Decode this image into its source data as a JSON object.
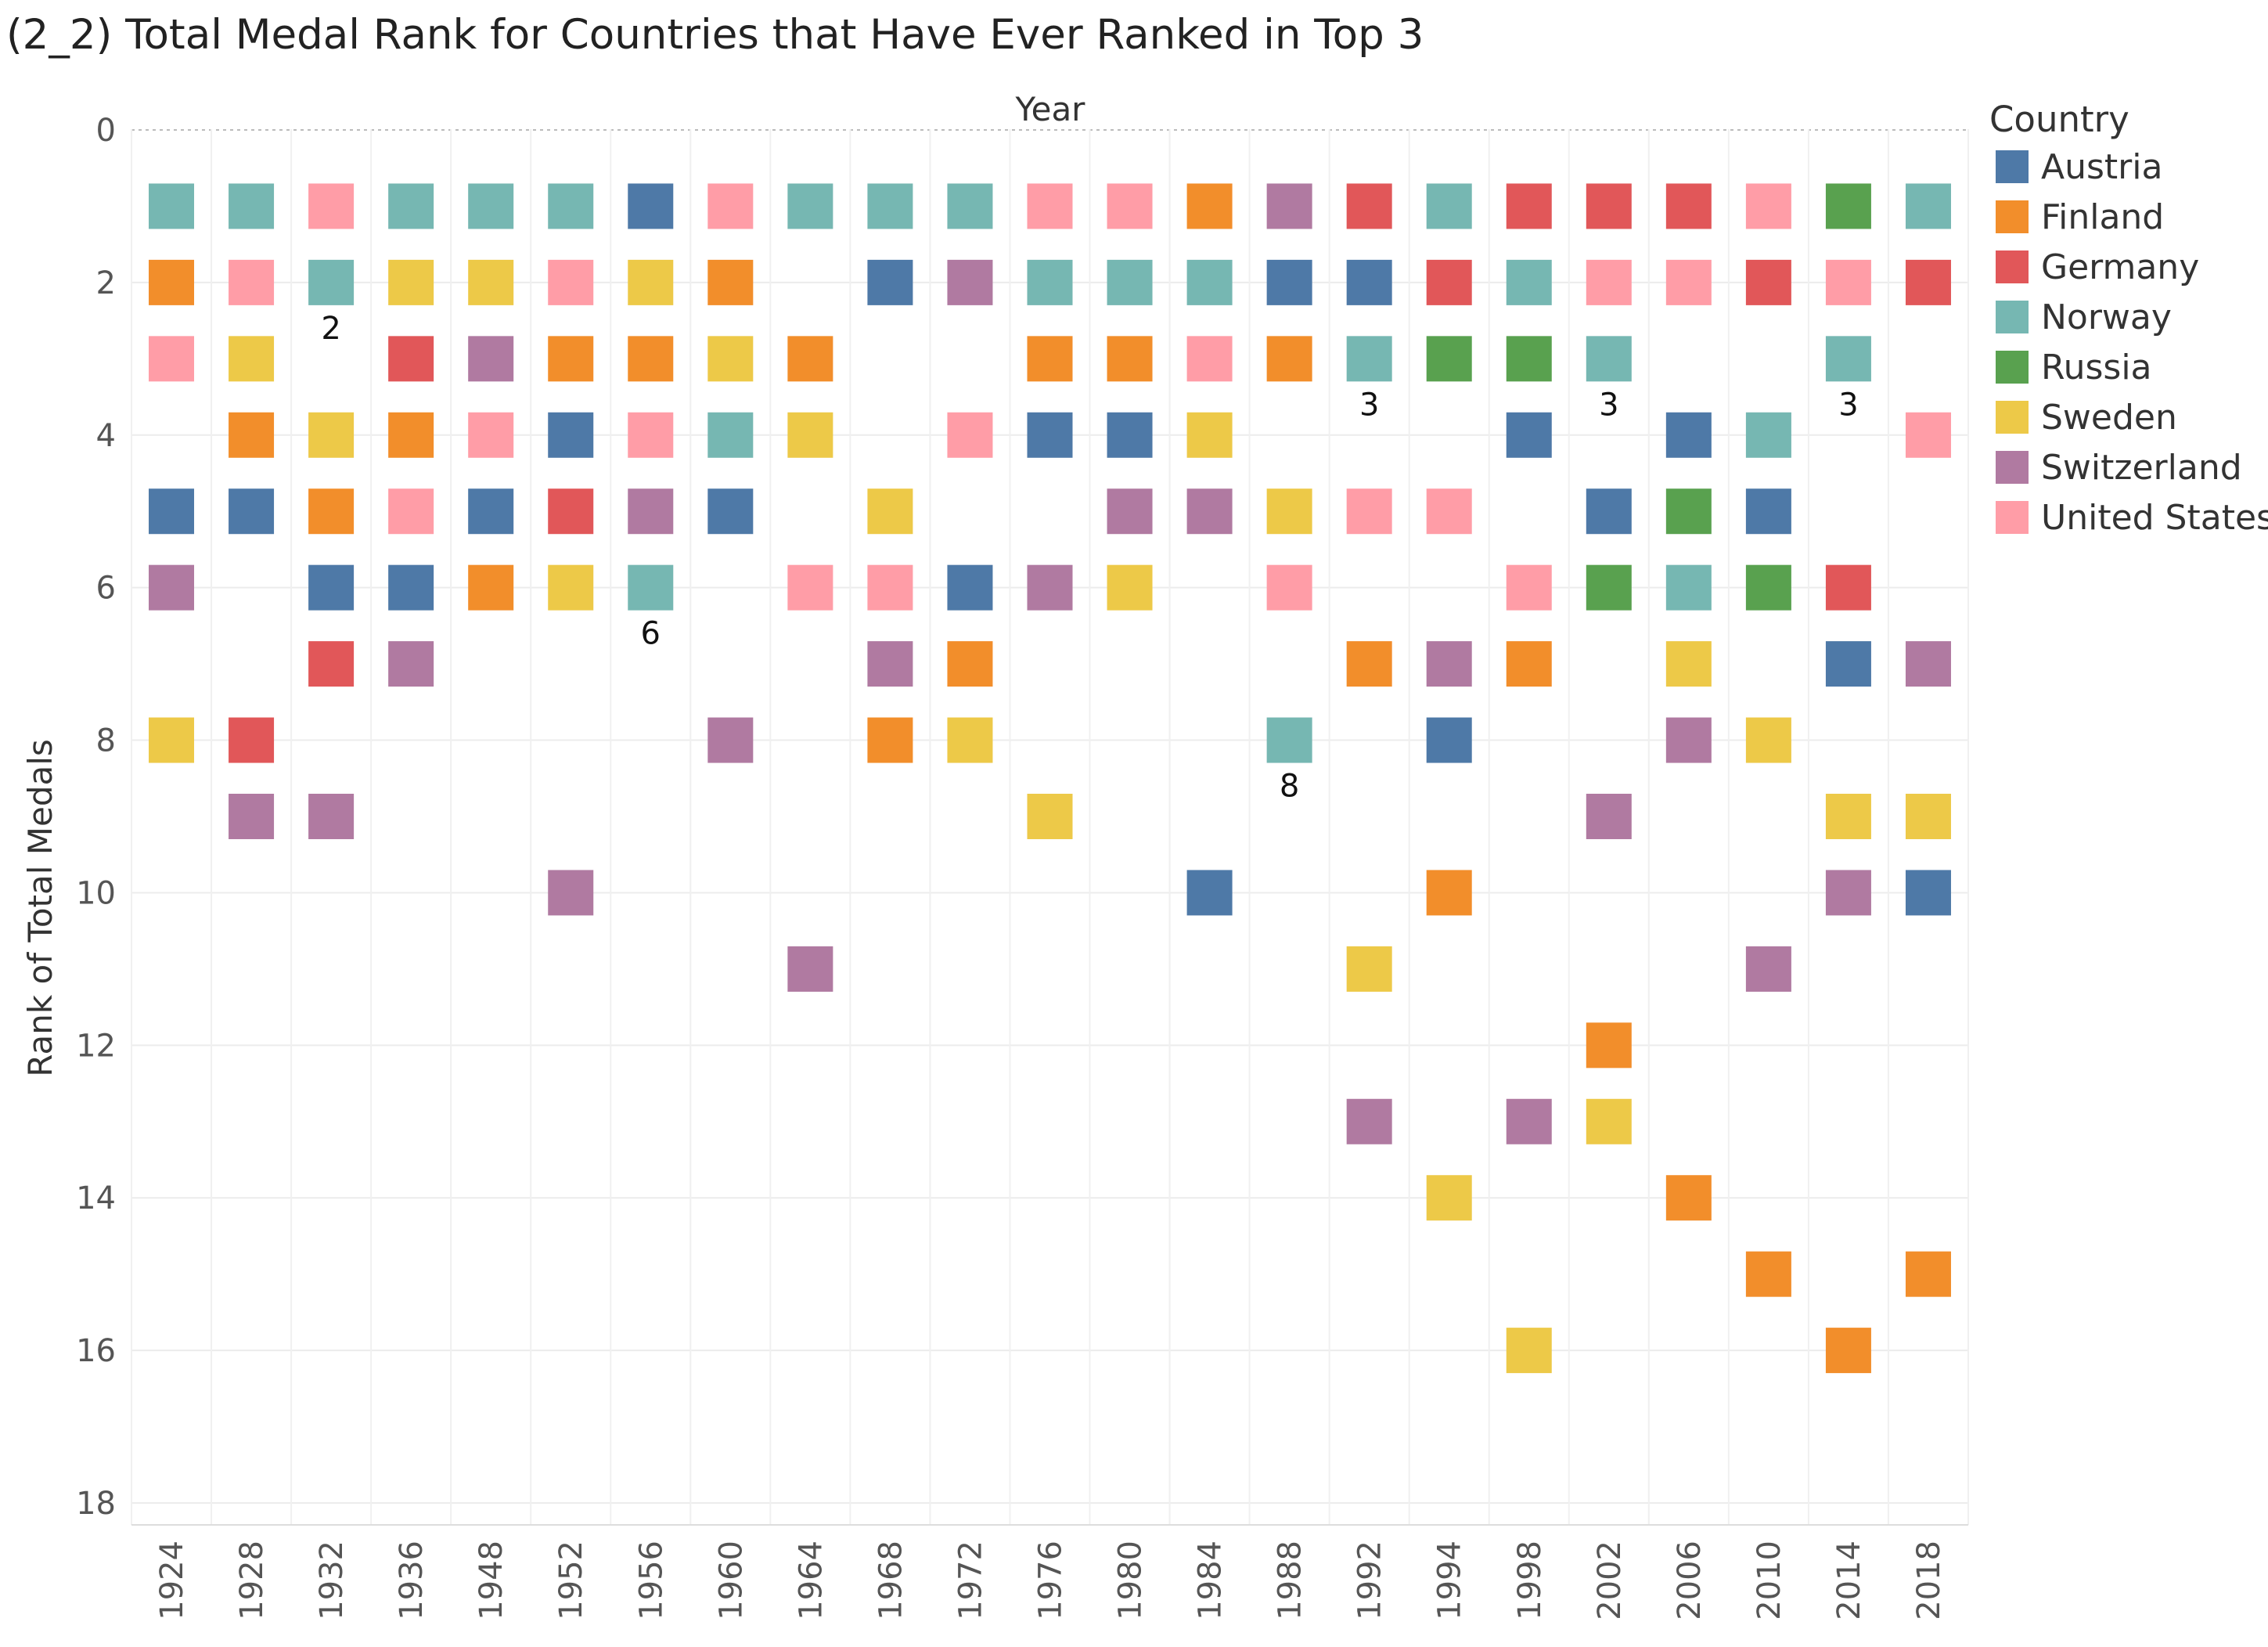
{
  "chart_data": {
    "type": "scatter",
    "mark": "square",
    "title": "(2_2) Total Medal Rank for Countries that Have Ever Ranked in Top 3",
    "xlabel": "Year",
    "ylabel": "Rank of Total Medals",
    "categories": [
      "1924",
      "1928",
      "1932",
      "1936",
      "1948",
      "1952",
      "1956",
      "1960",
      "1964",
      "1968",
      "1972",
      "1976",
      "1980",
      "1984",
      "1988",
      "1992",
      "1994",
      "1998",
      "2002",
      "2006",
      "2010",
      "2014",
      "2018"
    ],
    "ylim": [
      0,
      18
    ],
    "y_reversed": true,
    "yticks": [
      0,
      2,
      4,
      6,
      8,
      10,
      12,
      14,
      16,
      18
    ],
    "grid": true,
    "legend": {
      "title": "Country",
      "position": "right"
    },
    "series": [
      {
        "name": "Austria",
        "color": "#4e79a7",
        "values": [
          5,
          5,
          6,
          6,
          5,
          4,
          1,
          5,
          null,
          2,
          6,
          4,
          4,
          10,
          2,
          2,
          8,
          4,
          5,
          4,
          5,
          7,
          10
        ]
      },
      {
        "name": "Finland",
        "color": "#f28e2b",
        "values": [
          2,
          4,
          5,
          4,
          6,
          3,
          3,
          2,
          3,
          8,
          7,
          3,
          3,
          1,
          3,
          7,
          10,
          7,
          12,
          14,
          15,
          16,
          15
        ]
      },
      {
        "name": "Germany",
        "color": "#e15759",
        "values": [
          null,
          8,
          7,
          3,
          null,
          5,
          null,
          null,
          null,
          null,
          null,
          null,
          null,
          null,
          null,
          1,
          2,
          1,
          1,
          1,
          2,
          6,
          2
        ]
      },
      {
        "name": "Norway",
        "color": "#76b7b2",
        "values": [
          1,
          1,
          2,
          1,
          1,
          1,
          6,
          4,
          1,
          1,
          1,
          2,
          2,
          2,
          8,
          3,
          1,
          2,
          3,
          6,
          4,
          3,
          1
        ]
      },
      {
        "name": "Russia",
        "color": "#59a14f",
        "values": [
          null,
          null,
          null,
          null,
          null,
          null,
          null,
          null,
          null,
          null,
          null,
          null,
          null,
          null,
          null,
          null,
          3,
          3,
          6,
          5,
          6,
          1,
          null
        ]
      },
      {
        "name": "Sweden",
        "color": "#edc948",
        "values": [
          8,
          3,
          4,
          2,
          2,
          6,
          2,
          3,
          4,
          5,
          8,
          9,
          6,
          4,
          5,
          11,
          14,
          16,
          13,
          7,
          8,
          9,
          9
        ]
      },
      {
        "name": "Switzerland",
        "color": "#b07aa1",
        "values": [
          6,
          9,
          9,
          7,
          3,
          10,
          5,
          8,
          11,
          7,
          2,
          6,
          5,
          5,
          1,
          13,
          7,
          13,
          9,
          8,
          11,
          10,
          7
        ]
      },
      {
        "name": "United States",
        "color": "#ff9da7",
        "values": [
          3,
          2,
          1,
          5,
          4,
          2,
          4,
          1,
          6,
          6,
          4,
          1,
          1,
          3,
          6,
          5,
          5,
          6,
          2,
          2,
          1,
          2,
          4
        ]
      }
    ],
    "annotations": [
      {
        "year": "1932",
        "rank": 2,
        "text": "2"
      },
      {
        "year": "1956",
        "rank": 6,
        "text": "6"
      },
      {
        "year": "1988",
        "rank": 8,
        "text": "8"
      },
      {
        "year": "1992",
        "rank": 3,
        "text": "3"
      },
      {
        "year": "2002",
        "rank": 3,
        "text": "3"
      },
      {
        "year": "2014",
        "rank": 3,
        "text": "3"
      }
    ]
  }
}
